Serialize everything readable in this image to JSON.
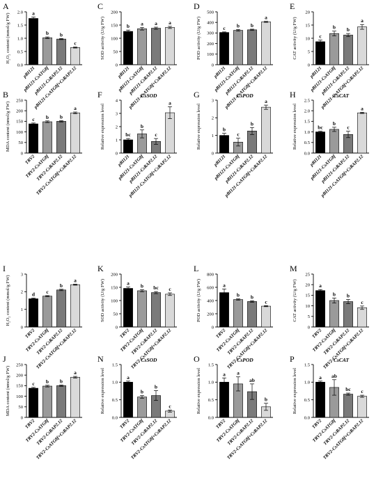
{
  "styles": {
    "colors": [
      "#000000",
      "#9a9a9a",
      "#7a7a7a",
      "#d9d9d9"
    ],
    "font": "serif"
  },
  "chart_data": [
    {
      "letter": "A",
      "type": "bar",
      "ylabel": "H₂O₂ content (mmol/g FW)",
      "ylim": [
        0,
        2.0
      ],
      "ticks": [
        0,
        0.5,
        1.0,
        1.5,
        2.0
      ],
      "gene_title": "",
      "categories": [
        "pBI121",
        "pBI121-CsATG8f",
        "pBI121-CsRAP2.12",
        "pBI121-CsATG8f+CsRAP2.12"
      ],
      "values": [
        1.75,
        1.02,
        0.97,
        0.65
      ],
      "errors": [
        0.05,
        0.03,
        0.02,
        0.02
      ],
      "sig": [
        "a",
        "b",
        "b",
        "c"
      ]
    },
    {
      "letter": "C",
      "type": "bar",
      "ylabel": "SOD activity (U/g FW)",
      "ylim": [
        0,
        200
      ],
      "ticks": [
        0,
        50,
        100,
        150,
        200
      ],
      "gene_title": "",
      "categories": [
        "pBI121",
        "pBI121-CsATG8f",
        "pBI121-CsRAP2.12",
        "pBI121-CsATG8f+CsRAP2.12"
      ],
      "values": [
        126,
        136,
        138,
        141
      ],
      "errors": [
        5,
        5,
        4,
        4
      ],
      "sig": [
        "b",
        "a",
        "a",
        "a"
      ]
    },
    {
      "letter": "D",
      "type": "bar",
      "ylabel": "POD activity (U/g FW)",
      "ylim": [
        0,
        500
      ],
      "ticks": [
        0,
        100,
        200,
        300,
        400,
        500
      ],
      "gene_title": "",
      "categories": [
        "pBI121",
        "pBI121-CsATG8f",
        "pBI121-CsRAP2.12",
        "pBI121-CsATG8f+CsRAP2.12"
      ],
      "values": [
        305,
        325,
        330,
        405
      ],
      "errors": [
        5,
        8,
        6,
        5
      ],
      "sig": [
        "c",
        "b",
        "b",
        "a"
      ]
    },
    {
      "letter": "E",
      "type": "bar",
      "ylabel": "CAT activity (U/g FW)",
      "ylim": [
        0,
        20
      ],
      "ticks": [
        0,
        5,
        10,
        15,
        20
      ],
      "gene_title": "",
      "categories": [
        "pBI121",
        "pBI121-CsATG8f",
        "pBI121-CsRAP2.12",
        "pBI121-CsATG8f+CsRAP2.12"
      ],
      "values": [
        8.7,
        11.8,
        11.2,
        14.3
      ],
      "errors": [
        0.6,
        0.9,
        0.6,
        0.9
      ],
      "sig": [
        "c",
        "b",
        "b",
        "a"
      ]
    },
    {
      "letter": "B",
      "type": "bar",
      "ylabel": "MDA content (nmol/g FW)",
      "ylim": [
        0,
        250
      ],
      "ticks": [
        0,
        50,
        100,
        150,
        200,
        250
      ],
      "gene_title": "",
      "categories": [
        "TRV2",
        "TRV2-CsATG8f",
        "TRV2-CsRAP2.12",
        "TRV2-CsATG8f+CsRAP2.12"
      ],
      "values": [
        138,
        148,
        150,
        190
      ],
      "errors": [
        4,
        4,
        3,
        4
      ],
      "sig": [
        "c",
        "b",
        "b",
        "a"
      ]
    },
    {
      "letter": "F",
      "type": "bar",
      "ylabel": "Relative expression level",
      "ylim": [
        0,
        4
      ],
      "ticks": [
        0,
        1,
        2,
        3,
        4
      ],
      "gene_title": "CsSOD",
      "categories": [
        "pBI121",
        "pBI121-CsATG8f",
        "pBI121-CsRAP2.12",
        "pBI121-CsATG8f+CsRAP2.12"
      ],
      "values": [
        1.0,
        1.45,
        0.88,
        3.05
      ],
      "errors": [
        0.1,
        0.3,
        0.22,
        0.45
      ],
      "sig": [
        "bc",
        "b",
        "c",
        "a"
      ]
    },
    {
      "letter": "G",
      "type": "bar",
      "ylabel": "Relative expression level",
      "ylim": [
        0,
        3
      ],
      "ticks": [
        0,
        1,
        2,
        3
      ],
      "gene_title": "CsPOD",
      "categories": [
        "pBI121",
        "pBI121-CsATG8f",
        "pBI121-CsRAP2.12",
        "pBI121-CsATG8f+CsRAP2.12"
      ],
      "values": [
        1.0,
        0.62,
        1.25,
        2.6
      ],
      "errors": [
        0.12,
        0.22,
        0.2,
        0.12
      ],
      "sig": [
        "b",
        "c",
        "b",
        "a"
      ]
    },
    {
      "letter": "H",
      "type": "bar",
      "ylabel": "Relative expression level",
      "ylim": [
        0,
        2.5
      ],
      "ticks": [
        0,
        0.5,
        1.0,
        1.5,
        2.0,
        2.5
      ],
      "gene_title": "CsCAT",
      "categories": [
        "pBI121",
        "pBI121-CsATG8f",
        "pBI121-CsRAP2.12",
        "pBI121-CsATG8f+CsRAP2.12"
      ],
      "values": [
        1.0,
        1.12,
        0.88,
        1.9
      ],
      "errors": [
        0.03,
        0.1,
        0.15,
        0.03
      ],
      "sig": [
        "bc",
        "b",
        "c",
        "a"
      ]
    },
    {
      "letter": "I",
      "type": "bar",
      "ylabel": "H₂O₂ content (mmol/g FW)",
      "ylim": [
        0,
        3
      ],
      "ticks": [
        0,
        1,
        2,
        3
      ],
      "gene_title": "",
      "categories": [
        "TRV2",
        "TRV2-CsATG8f",
        "TRV2-CsRAP2.12",
        "TRV2-CsATG8f+CsRAP2.12"
      ],
      "values": [
        1.6,
        1.75,
        2.1,
        2.4
      ],
      "errors": [
        0.04,
        0.03,
        0.04,
        0.03
      ],
      "sig": [
        "d",
        "c",
        "b",
        "a"
      ]
    },
    {
      "letter": "K",
      "type": "bar",
      "ylabel": "SOD activity (U/g FW)",
      "ylim": [
        0,
        200
      ],
      "ticks": [
        0,
        50,
        100,
        150,
        200
      ],
      "gene_title": "",
      "categories": [
        "TRV2",
        "TRV2-CsATG8f",
        "TRV2-CsRAP2.12",
        "TRV2-CsATG8f+CsRAP2.12"
      ],
      "values": [
        146,
        137,
        130,
        124
      ],
      "errors": [
        5,
        4,
        4,
        5
      ],
      "sig": [
        "a",
        "b",
        "bc",
        "c"
      ]
    },
    {
      "letter": "L",
      "type": "bar",
      "ylabel": "POD activity (U/g FW)",
      "ylim": [
        0,
        800
      ],
      "ticks": [
        0,
        200,
        400,
        600,
        800
      ],
      "gene_title": "",
      "categories": [
        "TRV2",
        "TRV2-CsATG8f",
        "TRV2-CsRAP2.12",
        "TRV2-CsATG8f+CsRAP2.12"
      ],
      "values": [
        520,
        415,
        385,
        315
      ],
      "errors": [
        55,
        10,
        12,
        8
      ],
      "sig": [
        "a",
        "b",
        "b",
        "c"
      ]
    },
    {
      "letter": "M",
      "type": "bar",
      "ylabel": "CAT activity (U/g FW)",
      "ylim": [
        0,
        25
      ],
      "ticks": [
        0,
        5,
        10,
        15,
        20,
        25
      ],
      "gene_title": "",
      "categories": [
        "TRV2",
        "TRV2-CsATG8f",
        "TRV2-CsRAP2.12",
        "TRV2-CsATG8f+CsRAP2.12"
      ],
      "values": [
        17.2,
        12.5,
        12.0,
        9.1
      ],
      "errors": [
        0.5,
        1.2,
        1.0,
        0.8
      ],
      "sig": [
        "a",
        "b",
        "b",
        "c"
      ]
    },
    {
      "letter": "J",
      "type": "bar",
      "ylabel": "MDA content (nmol/g FW)",
      "ylim": [
        0,
        250
      ],
      "ticks": [
        0,
        50,
        100,
        150,
        200,
        250
      ],
      "gene_title": "",
      "categories": [
        "TRV2",
        "TRV2-CsATG8f",
        "TRV2-CsRAP2.12",
        "TRV2-CsATG8f+CsRAP2.12"
      ],
      "values": [
        138,
        148,
        150,
        190
      ],
      "errors": [
        4,
        4,
        3,
        4
      ],
      "sig": [
        "c",
        "b",
        "b",
        "a"
      ]
    },
    {
      "letter": "N",
      "type": "bar",
      "ylabel": "Relative expression level",
      "ylim": [
        0,
        1.5
      ],
      "ticks": [
        0,
        0.5,
        1.0,
        1.5
      ],
      "gene_title": "CsSOD",
      "categories": [
        "TRV2",
        "TRV2-CsATG8f",
        "TRV2-CsRAP2.12",
        "TRV2-CsATG8f+CsRAP2.12"
      ],
      "values": [
        1.0,
        0.58,
        0.62,
        0.18
      ],
      "errors": [
        0.03,
        0.04,
        0.14,
        0.03
      ],
      "sig": [
        "a",
        "b",
        "b",
        "c"
      ]
    },
    {
      "letter": "O",
      "type": "bar",
      "ylabel": "Relative expression level",
      "ylim": [
        0,
        1.5
      ],
      "ticks": [
        0,
        0.5,
        1.0,
        1.5
      ],
      "gene_title": "CsPOD",
      "categories": [
        "TRV2",
        "TRV2-CsATG8f",
        "TRV2-CsRAP2.12",
        "TRV2-CsATG8f+CsRAP2.12"
      ],
      "values": [
        1.0,
        0.95,
        0.73,
        0.3
      ],
      "errors": [
        0.12,
        0.2,
        0.22,
        0.1
      ],
      "sig": [
        "a",
        "a",
        "ab",
        "b"
      ]
    },
    {
      "letter": "P",
      "type": "bar",
      "ylabel": "Relative expression level",
      "ylim": [
        0,
        1.5
      ],
      "ticks": [
        0,
        0.5,
        1.0,
        1.5
      ],
      "gene_title": "CsCAT",
      "categories": [
        "TRV2",
        "TRV2-CsATG8f",
        "TRV2-CsRAP2.12",
        "TRV2-CsATG8f+CsRAP2.12"
      ],
      "values": [
        1.0,
        0.85,
        0.66,
        0.6
      ],
      "errors": [
        0.03,
        0.22,
        0.03,
        0.03
      ],
      "sig": [
        "a",
        "ab",
        "bc",
        "c"
      ]
    }
  ]
}
